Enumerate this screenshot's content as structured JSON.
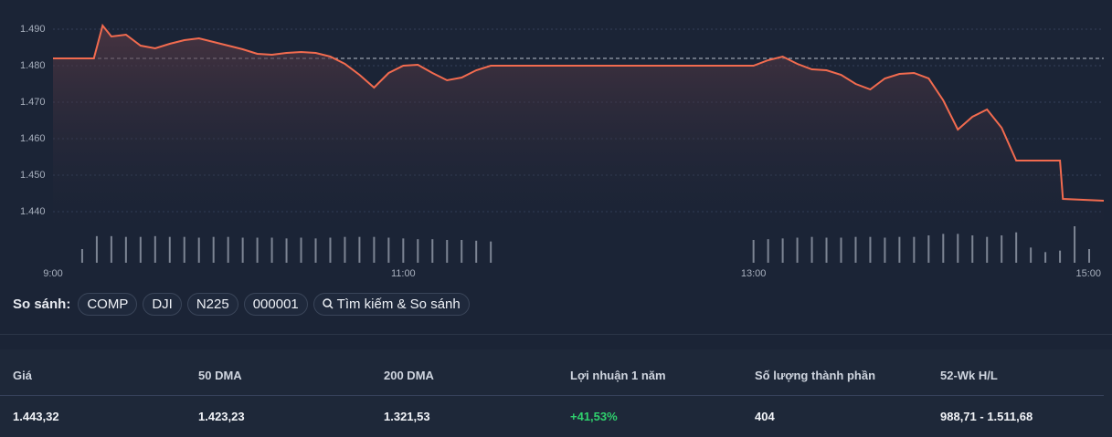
{
  "chart_data": [
    {
      "type": "line",
      "x": [
        "9:00",
        "9:10",
        "9:14",
        "9:17",
        "9:20",
        "9:25",
        "9:30",
        "9:35",
        "9:40",
        "9:45",
        "9:50",
        "9:55",
        "10:00",
        "10:05",
        "10:10",
        "10:15",
        "10:20",
        "10:25",
        "10:30",
        "10:35",
        "10:40",
        "10:45",
        "10:50",
        "10:55",
        "11:00",
        "11:05",
        "11:10",
        "11:15",
        "11:20",
        "11:25",
        "11:30",
        "13:00",
        "13:05",
        "13:10",
        "13:15",
        "13:20",
        "13:25",
        "13:30",
        "13:35",
        "13:40",
        "13:45",
        "13:50",
        "13:55",
        "14:00",
        "14:05",
        "14:10",
        "14:15",
        "14:20",
        "14:25",
        "14:30",
        "14:45",
        "14:46",
        "15:00"
      ],
      "series": [
        {
          "name": "Giá",
          "color": "#f26b4f",
          "values": [
            1482,
            1482,
            1482,
            1491,
            1488,
            1488.5,
            1485.5,
            1484.75,
            1486,
            1487,
            1487.5,
            1486.5,
            1485.5,
            1484.5,
            1483.25,
            1483,
            1483.5,
            1483.75,
            1483.5,
            1482.5,
            1480.5,
            1477.5,
            1474,
            1478,
            1480,
            1480.25,
            1478,
            1476,
            1476.75,
            1478.75,
            1480,
            1480,
            1481.5,
            1482.5,
            1480.5,
            1479,
            1478.75,
            1477.5,
            1475,
            1473.5,
            1476.5,
            1477.75,
            1478,
            1476.5,
            1470.5,
            1462.5,
            1466,
            1468,
            1463,
            1454,
            1454,
            1443.5,
            1443
          ]
        }
      ],
      "reference_line": 1482,
      "xlim": [
        "9:00",
        "15:00"
      ],
      "xticks": [
        "9:00",
        "11:00",
        "13:00",
        "15:00"
      ],
      "ylim": [
        1435,
        1495
      ],
      "yticks": [
        {
          "value": 1440,
          "label": "1.440"
        },
        {
          "value": 1450,
          "label": "1.450"
        },
        {
          "value": 1460,
          "label": "1.460"
        },
        {
          "value": 1470,
          "label": "1.470"
        },
        {
          "value": 1480,
          "label": "1.480"
        },
        {
          "value": 1490,
          "label": "1.490"
        }
      ],
      "grid": true
    },
    {
      "type": "bar",
      "x": [
        "9:10",
        "9:15",
        "9:20",
        "9:25",
        "9:30",
        "9:35",
        "9:40",
        "9:45",
        "9:50",
        "9:55",
        "10:00",
        "10:05",
        "10:10",
        "10:15",
        "10:20",
        "10:25",
        "10:30",
        "10:35",
        "10:40",
        "10:45",
        "10:50",
        "10:55",
        "11:00",
        "11:05",
        "11:10",
        "11:15",
        "11:20",
        "11:25",
        "11:30",
        "13:00",
        "13:05",
        "13:10",
        "13:15",
        "13:20",
        "13:25",
        "13:30",
        "13:35",
        "13:40",
        "13:45",
        "13:50",
        "13:55",
        "14:00",
        "14:05",
        "14:10",
        "14:15",
        "14:20",
        "14:25",
        "14:30",
        "14:35",
        "14:40",
        "14:45",
        "14:50",
        "14:55"
      ],
      "values": [
        18,
        35,
        35,
        34,
        34,
        35,
        34,
        34,
        33,
        34,
        34,
        33,
        33,
        33,
        32,
        33,
        32,
        33,
        34,
        34,
        34,
        33,
        32,
        31,
        31,
        30,
        30,
        29,
        28,
        30,
        31,
        32,
        33,
        34,
        33,
        33,
        34,
        34,
        33,
        34,
        34,
        36,
        38,
        38,
        36,
        34,
        36,
        40,
        20,
        14,
        16,
        48,
        18
      ],
      "color": "#7d8594",
      "ylim": [
        0,
        60
      ]
    }
  ],
  "compare": {
    "label": "So sánh:",
    "chips": [
      "COMP",
      "DJI",
      "N225",
      "000001"
    ],
    "search": "Tìm kiếm & So sánh"
  },
  "stats": {
    "headers": [
      "Giá",
      "50 DMA",
      "200 DMA",
      "Lợi nhuận 1 năm",
      "Số lượng thành phần",
      "52-Wk H/L"
    ],
    "values": [
      "1.443,32",
      "1.423,23",
      "1.321,53",
      "+41,53%",
      "404",
      "988,71 - 1.511,68"
    ]
  }
}
